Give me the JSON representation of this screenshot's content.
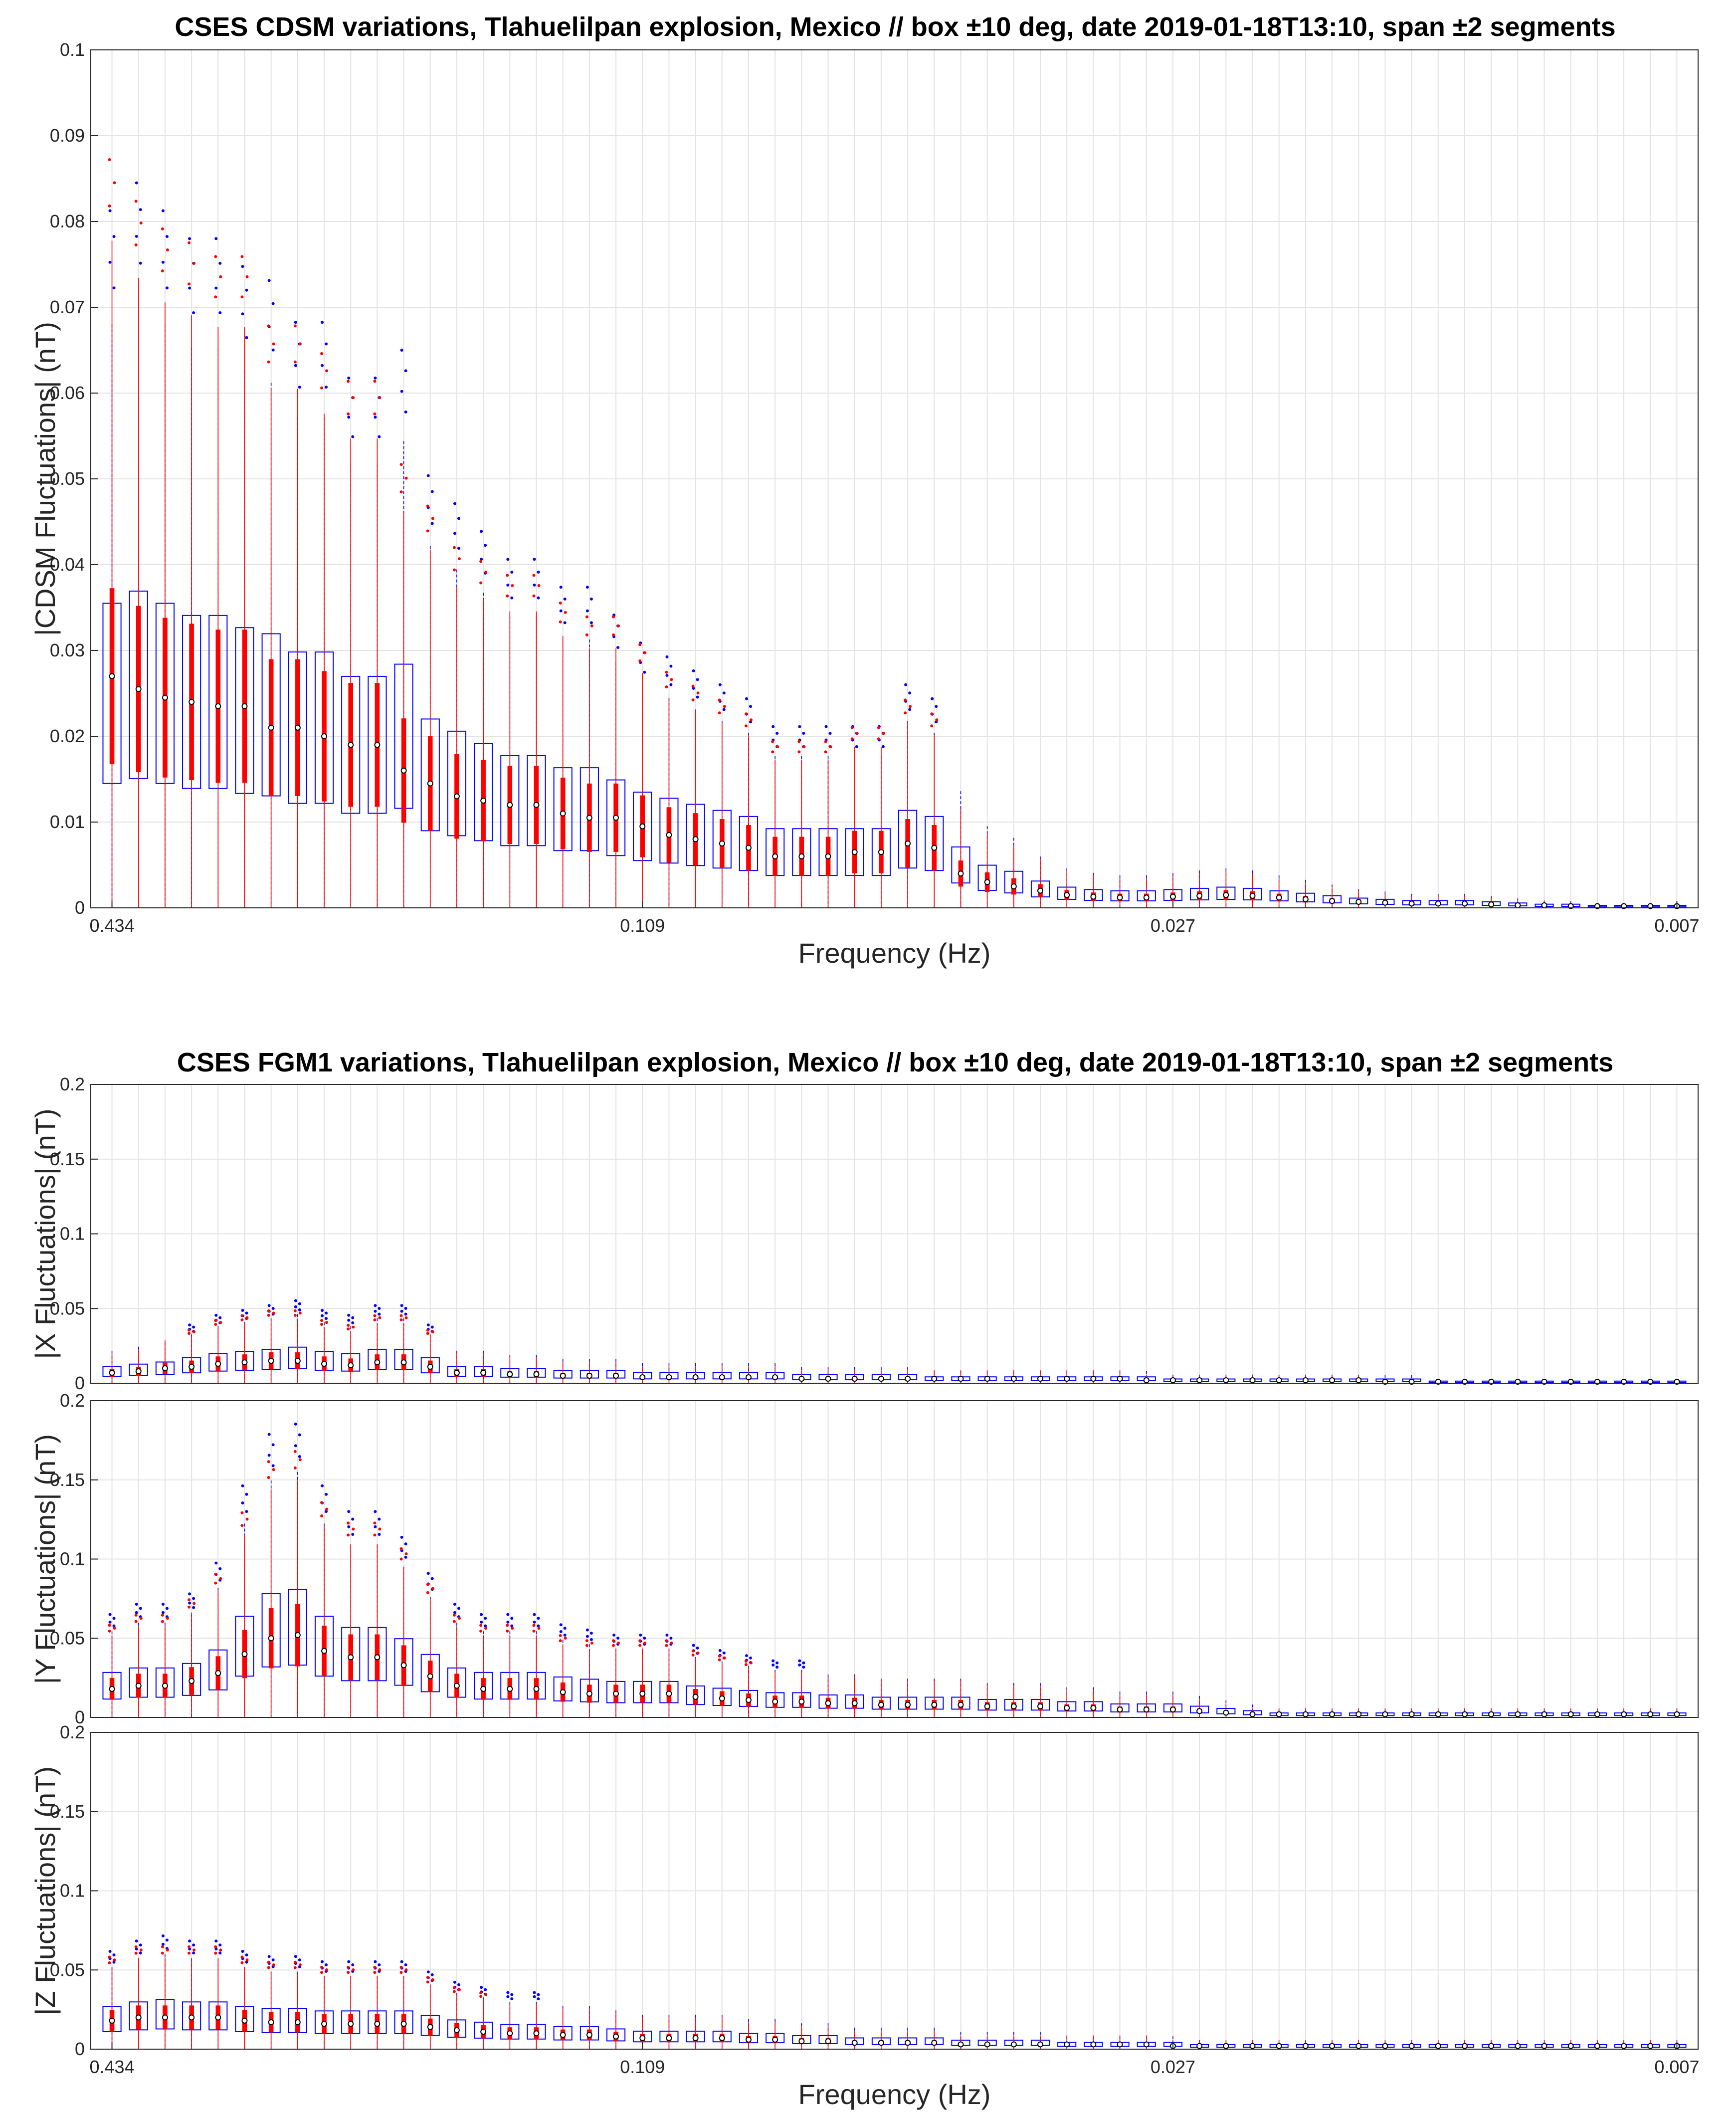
{
  "chart_data": [
    {
      "type": "box",
      "title": "CSES CDSM variations, Tlahuelilpan explosion, Mexico // box ±10 deg, date 2019-01-18T13:10, span ±2 segments",
      "panels": [
        {
          "ylabel": "|CDSM Fluctuations| (nT)",
          "xlabel": "Frequency (Hz)",
          "ylim": [
            0,
            0.1
          ],
          "yticks": [
            "0",
            "0.01",
            "0.02",
            "0.03",
            "0.04",
            "0.05",
            "0.06",
            "0.07",
            "0.08",
            "0.09",
            "0.1"
          ],
          "xtick_labels": [
            "0.434",
            "0.109",
            "0.027",
            "0.007"
          ],
          "grid": true,
          "series": [
            {
              "name": "",
              "color": "#0000ff",
              "medians": [
                0.025,
                0.026,
                0.025,
                0.024,
                0.024,
                0.023,
                0.0225,
                0.021,
                0.021,
                0.019,
                0.019,
                0.02,
                0.0155,
                0.0145,
                0.0135,
                0.0125,
                0.0125,
                0.0115,
                0.0115,
                0.0105,
                0.0095,
                0.009,
                0.0085,
                0.008,
                0.0075,
                0.0065,
                0.0065,
                0.0065,
                0.0065,
                0.0065,
                0.008,
                0.0075,
                0.005,
                0.0035,
                0.003,
                0.0022,
                0.0017,
                0.0015,
                0.0014,
                0.0014,
                0.0015,
                0.0016,
                0.0017,
                0.0016,
                0.0014,
                0.0012,
                0.001,
                0.0008,
                0.0007,
                0.0006,
                0.0006,
                0.0006,
                0.0005,
                0.0004,
                0.0003,
                0.0003,
                0.0002,
                0.0002,
                0.0002,
                0.0002
              ]
            },
            {
              "name": "",
              "color": "#ff0000",
              "medians": [
                0.027,
                0.0255,
                0.0245,
                0.024,
                0.0235,
                0.0235,
                0.021,
                0.021,
                0.02,
                0.019,
                0.019,
                0.016,
                0.0145,
                0.013,
                0.0125,
                0.012,
                0.012,
                0.011,
                0.0105,
                0.0105,
                0.0095,
                0.0085,
                0.008,
                0.0075,
                0.007,
                0.006,
                0.006,
                0.006,
                0.0065,
                0.0065,
                0.0075,
                0.007,
                0.004,
                0.003,
                0.0025,
                0.002,
                0.0015,
                0.0013,
                0.0012,
                0.0012,
                0.0013,
                0.0014,
                0.0015,
                0.0014,
                0.0012,
                0.001,
                0.0008,
                0.0007,
                0.0006,
                0.0005,
                0.0005,
                0.0005,
                0.0004,
                0.0003,
                0.0003,
                0.0002,
                0.0002,
                0.0002,
                0.0002,
                0.0002
              ]
            }
          ]
        }
      ]
    },
    {
      "type": "box",
      "title": "CSES FGM1 variations, Tlahuelilpan explosion, Mexico // box ±10 deg, date 2019-01-18T13:10, span ±2 segments",
      "panels": [
        {
          "ylabel": "|X Fluctuations| (nT)",
          "xlabel": "",
          "ylim": [
            0,
            0.2
          ],
          "yticks": [
            "0",
            "0.05",
            "0.1",
            "0.15",
            "0.2"
          ],
          "xtick_labels": [],
          "grid": true,
          "series": [
            {
              "name": "",
              "color": "#0000ff",
              "medians": [
                0.008,
                0.009,
                0.01,
                0.012,
                0.014,
                0.015,
                0.016,
                0.017,
                0.015,
                0.014,
                0.016,
                0.016,
                0.012,
                0.008,
                0.008,
                0.007,
                0.007,
                0.006,
                0.006,
                0.006,
                0.005,
                0.005,
                0.005,
                0.005,
                0.005,
                0.005,
                0.004,
                0.004,
                0.004,
                0.004,
                0.004,
                0.003,
                0.003,
                0.003,
                0.003,
                0.003,
                0.003,
                0.003,
                0.003,
                0.003,
                0.002,
                0.002,
                0.002,
                0.002,
                0.002,
                0.002,
                0.002,
                0.002,
                0.002,
                0.002,
                0.001,
                0.001,
                0.001,
                0.001,
                0.001,
                0.001,
                0.001,
                0.001,
                0.001,
                0.001
              ]
            },
            {
              "name": "",
              "color": "#ff0000",
              "medians": [
                0.007,
                0.008,
                0.01,
                0.011,
                0.013,
                0.014,
                0.015,
                0.015,
                0.013,
                0.012,
                0.014,
                0.014,
                0.011,
                0.007,
                0.007,
                0.006,
                0.006,
                0.005,
                0.005,
                0.005,
                0.004,
                0.004,
                0.004,
                0.004,
                0.004,
                0.004,
                0.003,
                0.003,
                0.003,
                0.003,
                0.003,
                0.003,
                0.003,
                0.003,
                0.003,
                0.003,
                0.003,
                0.003,
                0.003,
                0.002,
                0.002,
                0.002,
                0.002,
                0.002,
                0.002,
                0.002,
                0.002,
                0.002,
                0.001,
                0.001,
                0.001,
                0.001,
                0.001,
                0.001,
                0.001,
                0.001,
                0.001,
                0.001,
                0.001,
                0.001
              ]
            }
          ]
        },
        {
          "ylabel": "|Y Fluctuations| (nT)",
          "xlabel": "",
          "ylim": [
            0,
            0.2
          ],
          "yticks": [
            "0",
            "0.05",
            "0.1",
            "0.15",
            "0.2"
          ],
          "xtick_labels": [],
          "grid": true,
          "series": [
            {
              "name": "",
              "color": "#0000ff",
              "medians": [
                0.02,
                0.022,
                0.022,
                0.024,
                0.03,
                0.045,
                0.055,
                0.057,
                0.045,
                0.04,
                0.04,
                0.035,
                0.028,
                0.022,
                0.02,
                0.02,
                0.02,
                0.018,
                0.017,
                0.016,
                0.016,
                0.016,
                0.014,
                0.013,
                0.012,
                0.011,
                0.011,
                0.01,
                0.01,
                0.009,
                0.009,
                0.009,
                0.009,
                0.008,
                0.008,
                0.008,
                0.007,
                0.007,
                0.006,
                0.006,
                0.006,
                0.005,
                0.004,
                0.003,
                0.002,
                0.002,
                0.002,
                0.002,
                0.002,
                0.002,
                0.002,
                0.002,
                0.002,
                0.002,
                0.002,
                0.002,
                0.002,
                0.002,
                0.002,
                0.002
              ]
            },
            {
              "name": "",
              "color": "#ff0000",
              "medians": [
                0.018,
                0.02,
                0.02,
                0.023,
                0.028,
                0.04,
                0.05,
                0.052,
                0.042,
                0.038,
                0.038,
                0.033,
                0.026,
                0.02,
                0.018,
                0.018,
                0.018,
                0.016,
                0.015,
                0.015,
                0.015,
                0.015,
                0.013,
                0.012,
                0.011,
                0.01,
                0.01,
                0.009,
                0.009,
                0.008,
                0.008,
                0.008,
                0.008,
                0.007,
                0.007,
                0.007,
                0.006,
                0.006,
                0.005,
                0.005,
                0.005,
                0.004,
                0.003,
                0.002,
                0.002,
                0.002,
                0.002,
                0.002,
                0.002,
                0.002,
                0.002,
                0.002,
                0.002,
                0.002,
                0.002,
                0.002,
                0.002,
                0.002,
                0.002,
                0.002
              ]
            }
          ]
        },
        {
          "ylabel": "|Z Fluctuations| (nT)",
          "xlabel": "Frequency (Hz)",
          "ylim": [
            0,
            0.2
          ],
          "yticks": [
            "0",
            "0.05",
            "0.1",
            "0.15",
            "0.2"
          ],
          "xtick_labels": [
            "0.434",
            "0.109",
            "0.027",
            "0.007"
          ],
          "grid": true,
          "series": [
            {
              "name": "",
              "color": "#0000ff",
              "medians": [
                0.019,
                0.021,
                0.022,
                0.021,
                0.021,
                0.019,
                0.018,
                0.018,
                0.017,
                0.017,
                0.017,
                0.017,
                0.015,
                0.013,
                0.012,
                0.011,
                0.011,
                0.01,
                0.01,
                0.009,
                0.008,
                0.008,
                0.008,
                0.008,
                0.007,
                0.007,
                0.006,
                0.006,
                0.005,
                0.005,
                0.005,
                0.005,
                0.004,
                0.004,
                0.004,
                0.004,
                0.003,
                0.003,
                0.003,
                0.003,
                0.003,
                0.002,
                0.002,
                0.002,
                0.002,
                0.002,
                0.002,
                0.002,
                0.002,
                0.002,
                0.002,
                0.002,
                0.002,
                0.002,
                0.002,
                0.002,
                0.002,
                0.002,
                0.002,
                0.002
              ]
            },
            {
              "name": "",
              "color": "#ff0000",
              "medians": [
                0.018,
                0.02,
                0.02,
                0.02,
                0.02,
                0.018,
                0.017,
                0.017,
                0.016,
                0.016,
                0.016,
                0.016,
                0.014,
                0.012,
                0.011,
                0.01,
                0.01,
                0.009,
                0.009,
                0.008,
                0.007,
                0.007,
                0.007,
                0.007,
                0.006,
                0.006,
                0.005,
                0.005,
                0.004,
                0.004,
                0.004,
                0.004,
                0.003,
                0.003,
                0.003,
                0.003,
                0.003,
                0.003,
                0.003,
                0.003,
                0.002,
                0.002,
                0.002,
                0.002,
                0.002,
                0.002,
                0.002,
                0.002,
                0.002,
                0.002,
                0.002,
                0.002,
                0.002,
                0.002,
                0.002,
                0.002,
                0.002,
                0.002,
                0.002,
                0.002
              ]
            }
          ]
        }
      ]
    }
  ]
}
